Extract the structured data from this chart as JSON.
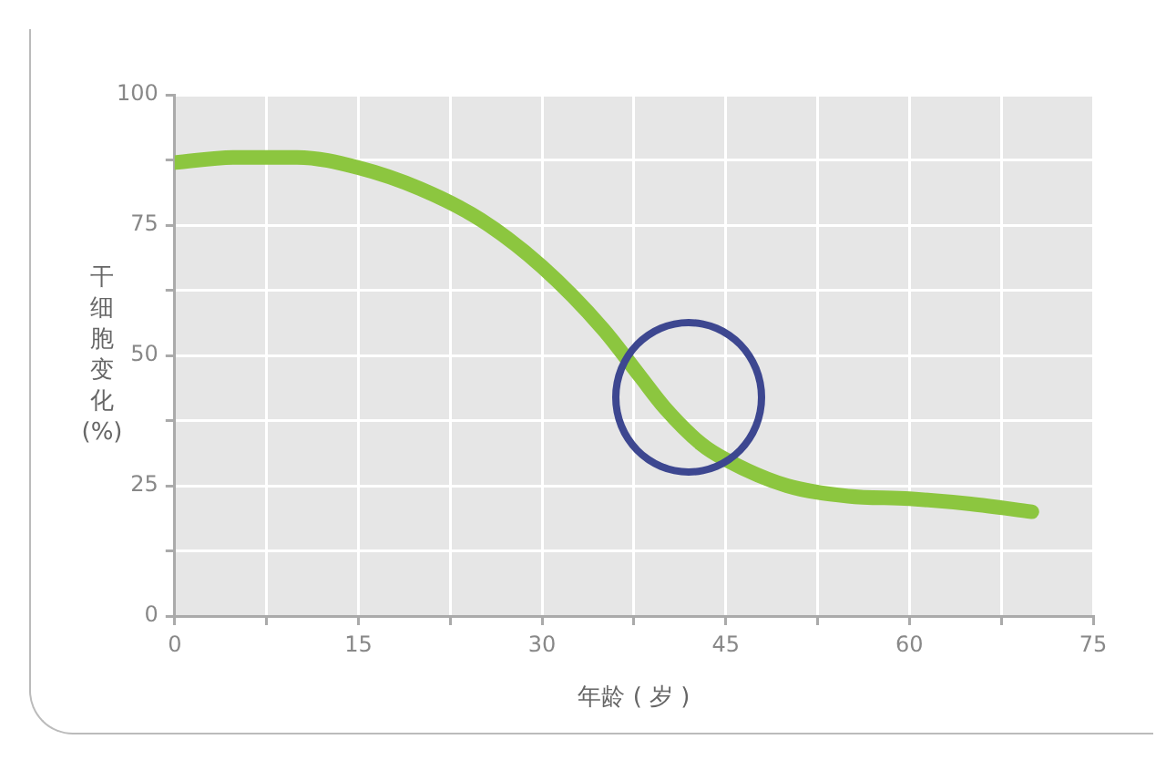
{
  "chart_data": {
    "type": "line",
    "xlabel": "年龄 ( 岁 )",
    "ylabel": "干细胞变化 (%)",
    "x": [
      0,
      5,
      10,
      15,
      20,
      25,
      30,
      35,
      38,
      40,
      43,
      45,
      50,
      55,
      60,
      65,
      70
    ],
    "series": [
      {
        "color": "#8cc63f",
        "values": [
          87,
          88,
          88,
          86,
          82,
          76,
          67,
          55,
          46,
          40,
          33,
          30,
          25,
          23,
          22.5,
          21.5,
          20
        ]
      }
    ],
    "xlim": [
      0,
      75
    ],
    "xticks": [
      0,
      {
        "value": 7.5,
        "label": null
      },
      15,
      {
        "value": 22.5,
        "label": null
      },
      30,
      {
        "value": 37.5,
        "label": null
      },
      45,
      {
        "value": 52.5,
        "label": null
      },
      60,
      {
        "value": 67.5,
        "label": null
      },
      75
    ],
    "ylim": [
      0,
      100
    ],
    "yticks": [
      0,
      {
        "value": 12.5,
        "label": null
      },
      25,
      {
        "value": 37.5,
        "label": null
      },
      50,
      {
        "value": 62.5,
        "label": null
      },
      75,
      {
        "value": 87.5,
        "label": null
      },
      100
    ],
    "grid": true,
    "legend": false,
    "marker": "none",
    "line_style": "solid"
  }
}
